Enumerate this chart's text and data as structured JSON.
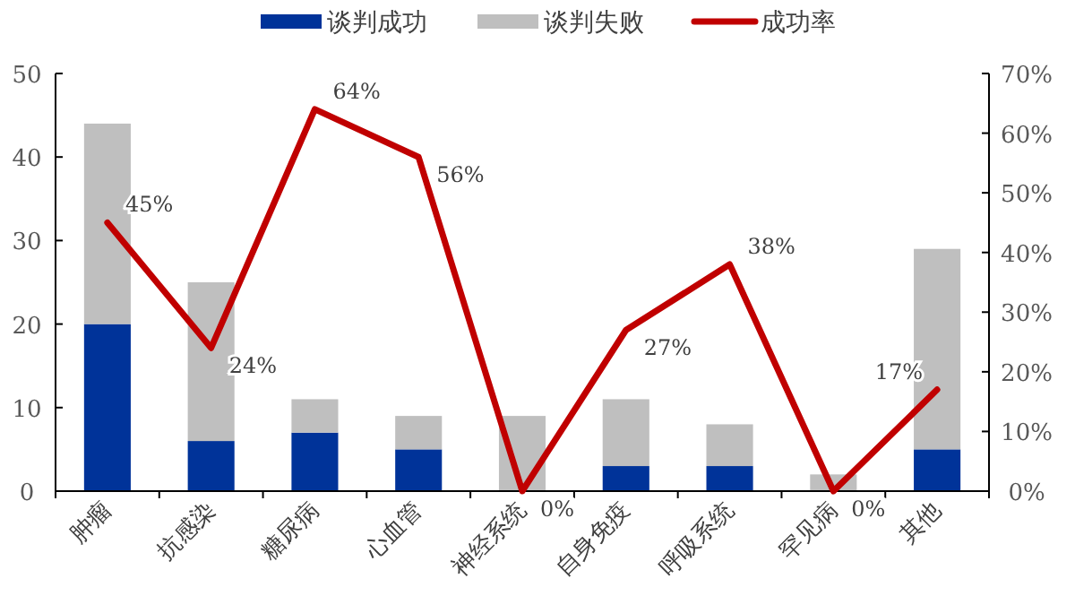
{
  "chart_data": {
    "type": "bar",
    "stacked": true,
    "categories": [
      "肿瘤",
      "抗感染",
      "糖尿病",
      "心血管",
      "神经系统",
      "自身免疫",
      "呼吸系统",
      "罕见病",
      "其他"
    ],
    "series": [
      {
        "name": "谈判成功",
        "color": "#003399",
        "values": [
          20,
          6,
          7,
          5,
          0,
          3,
          3,
          0,
          5
        ]
      },
      {
        "name": "谈判失败",
        "color": "#bfbfbf",
        "values": [
          24,
          19,
          4,
          4,
          9,
          8,
          5,
          2,
          24
        ]
      },
      {
        "name": "成功率",
        "type": "line",
        "axis": "y2",
        "color": "#c00000",
        "values": [
          45,
          24,
          64,
          56,
          0,
          27,
          38,
          0,
          17
        ],
        "value_labels": [
          "45%",
          "24%",
          "64%",
          "56%",
          "0%",
          "27%",
          "38%",
          "0%",
          "17%"
        ]
      }
    ],
    "ylim": [
      0,
      50
    ],
    "yticks": [
      0,
      10,
      20,
      30,
      40,
      50
    ],
    "y2lim": [
      0,
      70
    ],
    "y2ticks": [
      {
        "value": 0,
        "label": "0%"
      },
      {
        "value": 10,
        "label": "10%"
      },
      {
        "value": 20,
        "label": "20%"
      },
      {
        "value": 30,
        "label": "30%"
      },
      {
        "value": 40,
        "label": "40%"
      },
      {
        "value": 50,
        "label": "50%"
      },
      {
        "value": 60,
        "label": "60%"
      },
      {
        "value": 70,
        "label": "70%"
      }
    ],
    "legend": "top",
    "grid": false
  }
}
